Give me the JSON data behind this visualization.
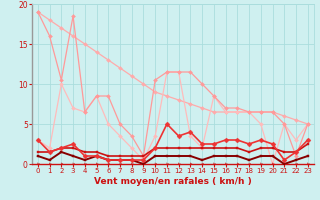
{
  "background_color": "#cff0f0",
  "grid_color": "#aadddd",
  "xlabel": "Vent moyen/en rafales ( km/h )",
  "xlim": [
    -0.5,
    23.5
  ],
  "ylim": [
    0,
    20
  ],
  "yticks": [
    0,
    5,
    10,
    15,
    20
  ],
  "xticks": [
    0,
    1,
    2,
    3,
    4,
    5,
    6,
    7,
    8,
    9,
    10,
    11,
    12,
    13,
    14,
    15,
    16,
    17,
    18,
    19,
    20,
    21,
    22,
    23
  ],
  "series": [
    {
      "x": [
        0,
        1,
        2,
        3,
        4,
        5,
        6,
        7,
        8,
        9,
        10,
        11,
        12,
        13,
        14,
        15,
        16,
        17,
        18,
        19,
        20,
        21,
        22,
        23
      ],
      "y": [
        19,
        16,
        10.5,
        18.5,
        6.5,
        8.5,
        8.5,
        5,
        3.5,
        1,
        10.5,
        11.5,
        11.5,
        11.5,
        10,
        8.5,
        7,
        7,
        6.5,
        6.5,
        6.5,
        5,
        1,
        5
      ],
      "color": "#ff9999",
      "lw": 0.9,
      "marker": "D",
      "ms": 2.0,
      "zorder": 3
    },
    {
      "x": [
        0,
        1,
        2,
        3,
        4,
        5,
        6,
        7,
        8,
        9,
        10,
        11,
        12,
        13,
        14,
        15,
        16,
        17,
        18,
        19,
        20,
        21,
        22,
        23
      ],
      "y": [
        19,
        18,
        17,
        16,
        15,
        14,
        13,
        12,
        11,
        10,
        9,
        8.5,
        8,
        7.5,
        7,
        6.5,
        6.5,
        6.5,
        6.5,
        6.5,
        6.5,
        6,
        5.5,
        5
      ],
      "color": "#ffaaaa",
      "lw": 0.9,
      "marker": "D",
      "ms": 2.0,
      "zorder": 2
    },
    {
      "x": [
        0,
        1,
        2,
        3,
        4,
        5,
        6,
        7,
        8,
        9,
        10,
        11,
        12,
        13,
        14,
        15,
        16,
        17,
        18,
        19,
        20,
        21,
        22,
        23
      ],
      "y": [
        3,
        2,
        10,
        7,
        6.5,
        8.5,
        5,
        3.5,
        2,
        0.5,
        3.5,
        11.5,
        11.5,
        3.5,
        2,
        8.5,
        6.5,
        6.5,
        6.5,
        5,
        0,
        5,
        3,
        5
      ],
      "color": "#ffbbbb",
      "lw": 0.9,
      "marker": "D",
      "ms": 2.0,
      "zorder": 2
    },
    {
      "x": [
        0,
        1,
        2,
        3,
        4,
        5,
        6,
        7,
        8,
        9,
        10,
        11,
        12,
        13,
        14,
        15,
        16,
        17,
        18,
        19,
        20,
        21,
        22,
        23
      ],
      "y": [
        3,
        1.5,
        2,
        2.5,
        1,
        1,
        0.5,
        0.5,
        0.5,
        0.5,
        2,
        5,
        3.5,
        4,
        2.5,
        2.5,
        3,
        3,
        2.5,
        3,
        2.5,
        0.5,
        1.5,
        3
      ],
      "color": "#ee3333",
      "lw": 1.2,
      "marker": "D",
      "ms": 2.5,
      "zorder": 5
    },
    {
      "x": [
        0,
        1,
        2,
        3,
        4,
        5,
        6,
        7,
        8,
        9,
        10,
        11,
        12,
        13,
        14,
        15,
        16,
        17,
        18,
        19,
        20,
        21,
        22,
        23
      ],
      "y": [
        1.5,
        1.5,
        2,
        2,
        1.5,
        1.5,
        1,
        1,
        1,
        1,
        2,
        2,
        2,
        2,
        2,
        2,
        2,
        2,
        1.5,
        2,
        2,
        1.5,
        1.5,
        2.5
      ],
      "color": "#cc1111",
      "lw": 1.2,
      "marker": "s",
      "ms": 2.0,
      "zorder": 4
    },
    {
      "x": [
        0,
        1,
        2,
        3,
        4,
        5,
        6,
        7,
        8,
        9,
        10,
        11,
        12,
        13,
        14,
        15,
        16,
        17,
        18,
        19,
        20,
        21,
        22,
        23
      ],
      "y": [
        1,
        0.5,
        1.5,
        1,
        0.5,
        1,
        0.5,
        0.5,
        0.5,
        0,
        1,
        1,
        1,
        1,
        0.5,
        1,
        1,
        1,
        0.5,
        1,
        1,
        0,
        0.5,
        1
      ],
      "color": "#880000",
      "lw": 1.4,
      "marker": "s",
      "ms": 2.0,
      "zorder": 4
    }
  ],
  "arrow_color": "#cc1111",
  "xlabel_color": "#cc1111",
  "xlabel_fontsize": 6.5,
  "tick_color": "#cc1111",
  "tick_fontsize": 5.0,
  "ytick_fontsize": 5.5
}
